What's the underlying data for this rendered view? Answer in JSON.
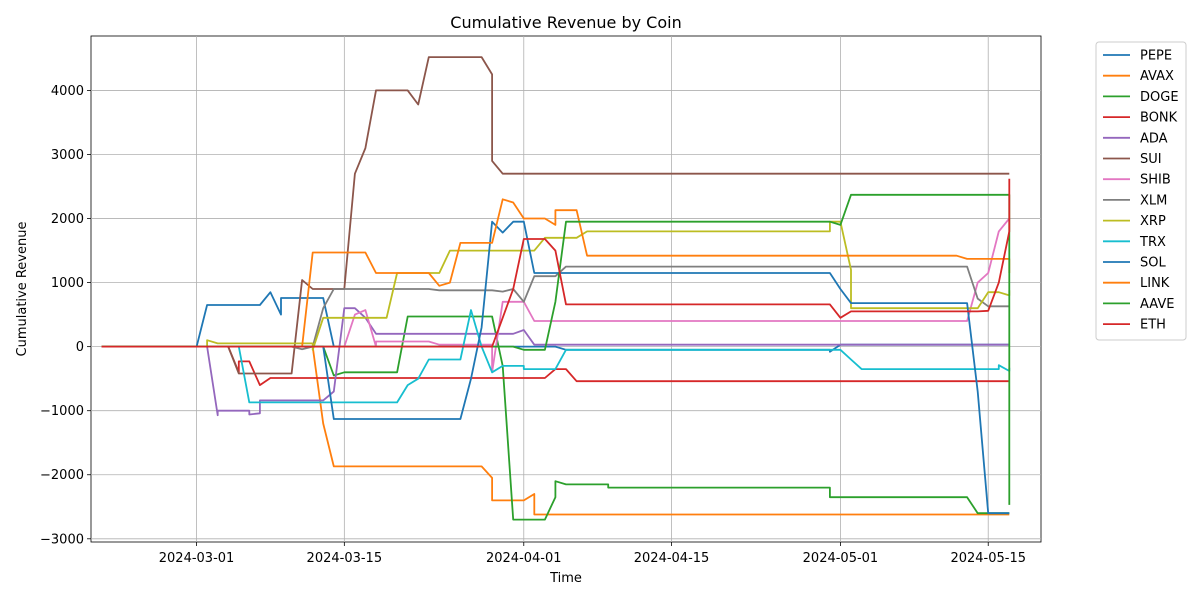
{
  "chart_data": {
    "type": "line",
    "title": "Cumulative Revenue by Coin",
    "xlabel": "Time",
    "ylabel": "Cumulative Revenue",
    "xlim": [
      "2024-02-20",
      "2024-05-20"
    ],
    "ylim": [
      -3050,
      4850
    ],
    "x_ticks": [
      "2024-03-01",
      "2024-03-15",
      "2024-04-01",
      "2024-04-15",
      "2024-05-01",
      "2024-05-15"
    ],
    "y_ticks": [
      -3000,
      -2000,
      -1000,
      0,
      1000,
      2000,
      3000,
      4000
    ],
    "grid": true,
    "legend_position": "outside-right",
    "series": [
      {
        "name": "PEPE",
        "color": "#1f77b4",
        "points": [
          [
            "2024-02-21",
            0
          ],
          [
            "2024-03-01",
            0
          ],
          [
            "2024-03-02",
            650
          ],
          [
            "2024-03-07",
            650
          ],
          [
            "2024-03-08",
            850
          ],
          [
            "2024-03-09",
            500
          ],
          [
            "2024-03-09",
            760
          ],
          [
            "2024-03-13",
            760
          ],
          [
            "2024-03-14",
            0
          ],
          [
            "2024-03-17",
            0
          ],
          [
            "2024-04-04",
            0
          ],
          [
            "2024-04-05",
            -50
          ],
          [
            "2024-04-30",
            -50
          ],
          [
            "2024-04-30",
            -80
          ],
          [
            "2024-05-01",
            30
          ],
          [
            "2024-05-17",
            30
          ]
        ]
      },
      {
        "name": "AVAX",
        "color": "#ff7f0e",
        "points": [
          [
            "2024-02-21",
            0
          ],
          [
            "2024-03-12",
            0
          ],
          [
            "2024-03-13",
            -1200
          ],
          [
            "2024-03-14",
            -1870
          ],
          [
            "2024-03-28",
            -1870
          ],
          [
            "2024-03-29",
            -2050
          ],
          [
            "2024-03-29",
            -2400
          ],
          [
            "2024-04-01",
            -2400
          ],
          [
            "2024-04-02",
            -2300
          ],
          [
            "2024-04-02",
            -2620
          ],
          [
            "2024-05-17",
            -2620
          ]
        ]
      },
      {
        "name": "DOGE",
        "color": "#2ca02c",
        "points": [
          [
            "2024-02-21",
            0
          ],
          [
            "2024-03-13",
            0
          ],
          [
            "2024-03-14",
            -450
          ],
          [
            "2024-03-15",
            -400
          ],
          [
            "2024-03-20",
            -400
          ],
          [
            "2024-03-21",
            470
          ],
          [
            "2024-03-29",
            470
          ],
          [
            "2024-03-30",
            -300
          ],
          [
            "2024-03-31",
            -2700
          ],
          [
            "2024-04-03",
            -2700
          ],
          [
            "2024-04-04",
            -2350
          ],
          [
            "2024-04-04",
            -2100
          ],
          [
            "2024-04-05",
            -2150
          ],
          [
            "2024-04-09",
            -2150
          ],
          [
            "2024-04-09",
            -2200
          ],
          [
            "2024-04-30",
            -2200
          ],
          [
            "2024-04-30",
            -2350
          ],
          [
            "2024-05-13",
            -2350
          ],
          [
            "2024-05-14",
            -2600
          ],
          [
            "2024-05-17",
            -2600
          ]
        ]
      },
      {
        "name": "BONK",
        "color": "#d62728",
        "points": [
          [
            "2024-02-21",
            0
          ],
          [
            "2024-03-04",
            0
          ],
          [
            "2024-03-05",
            -400
          ],
          [
            "2024-03-05",
            -230
          ],
          [
            "2024-03-06",
            -230
          ],
          [
            "2024-03-07",
            -600
          ],
          [
            "2024-03-08",
            -490
          ],
          [
            "2024-04-03",
            -490
          ],
          [
            "2024-04-04",
            -350
          ],
          [
            "2024-04-05",
            -350
          ],
          [
            "2024-04-06",
            -540
          ],
          [
            "2024-04-06",
            -540
          ],
          [
            "2024-05-17",
            -540
          ]
        ]
      },
      {
        "name": "ADA",
        "color": "#9467bd",
        "points": [
          [
            "2024-02-21",
            0
          ],
          [
            "2024-03-02",
            0
          ],
          [
            "2024-03-03",
            -1070
          ],
          [
            "2024-03-03",
            -1000
          ],
          [
            "2024-03-06",
            -1000
          ],
          [
            "2024-03-06",
            -1060
          ],
          [
            "2024-03-07",
            -1040
          ],
          [
            "2024-03-07",
            -840
          ],
          [
            "2024-03-13",
            -840
          ],
          [
            "2024-03-14",
            -700
          ],
          [
            "2024-03-15",
            600
          ],
          [
            "2024-03-16",
            600
          ],
          [
            "2024-03-17",
            450
          ],
          [
            "2024-03-18",
            200
          ],
          [
            "2024-03-31",
            200
          ],
          [
            "2024-04-01",
            260
          ],
          [
            "2024-04-02",
            30
          ],
          [
            "2024-05-17",
            30
          ]
        ]
      },
      {
        "name": "SUI",
        "color": "#8c564b",
        "points": [
          [
            "2024-02-21",
            0
          ],
          [
            "2024-03-04",
            0
          ],
          [
            "2024-03-05",
            -420
          ],
          [
            "2024-03-10",
            -420
          ],
          [
            "2024-03-11",
            1040
          ],
          [
            "2024-03-11",
            1040
          ],
          [
            "2024-03-12",
            900
          ],
          [
            "2024-03-15",
            900
          ],
          [
            "2024-03-16",
            2700
          ],
          [
            "2024-03-17",
            3100
          ],
          [
            "2024-03-18",
            4000
          ],
          [
            "2024-03-21",
            4000
          ],
          [
            "2024-03-22",
            3780
          ],
          [
            "2024-03-23",
            4520
          ],
          [
            "2024-03-28",
            4520
          ],
          [
            "2024-03-29",
            4250
          ],
          [
            "2024-03-29",
            2900
          ],
          [
            "2024-03-30",
            2700
          ],
          [
            "2024-05-17",
            2700
          ]
        ]
      },
      {
        "name": "SHIB",
        "color": "#e377c2",
        "points": [
          [
            "2024-02-21",
            0
          ],
          [
            "2024-03-15",
            0
          ],
          [
            "2024-03-16",
            500
          ],
          [
            "2024-03-17",
            570
          ],
          [
            "2024-03-18",
            0
          ],
          [
            "2024-03-18",
            80
          ],
          [
            "2024-03-23",
            80
          ],
          [
            "2024-03-24",
            30
          ],
          [
            "2024-03-29",
            30
          ],
          [
            "2024-03-29",
            -400
          ],
          [
            "2024-03-30",
            700
          ],
          [
            "2024-04-01",
            700
          ],
          [
            "2024-04-02",
            400
          ],
          [
            "2024-05-13",
            400
          ],
          [
            "2024-05-14",
            1000
          ],
          [
            "2024-05-15",
            1150
          ],
          [
            "2024-05-16",
            1800
          ],
          [
            "2024-05-17",
            2000
          ]
        ]
      },
      {
        "name": "XLM",
        "color": "#7f7f7f",
        "points": [
          [
            "2024-02-21",
            0
          ],
          [
            "2024-03-10",
            0
          ],
          [
            "2024-03-11",
            -40
          ],
          [
            "2024-03-12",
            0
          ],
          [
            "2024-03-13",
            600
          ],
          [
            "2024-03-14",
            900
          ],
          [
            "2024-03-23",
            900
          ],
          [
            "2024-03-24",
            880
          ],
          [
            "2024-03-29",
            880
          ],
          [
            "2024-03-30",
            860
          ],
          [
            "2024-03-31",
            900
          ],
          [
            "2024-04-01",
            700
          ],
          [
            "2024-04-02",
            1100
          ],
          [
            "2024-04-04",
            1100
          ],
          [
            "2024-04-05",
            1250
          ],
          [
            "2024-04-06",
            1250
          ],
          [
            "2024-05-01",
            1250
          ],
          [
            "2024-05-13",
            1250
          ],
          [
            "2024-05-14",
            750
          ],
          [
            "2024-05-15",
            630
          ],
          [
            "2024-05-17",
            630
          ]
        ]
      },
      {
        "name": "XRP",
        "color": "#bcbd22",
        "points": [
          [
            "2024-02-21",
            0
          ],
          [
            "2024-03-02",
            0
          ],
          [
            "2024-03-02",
            100
          ],
          [
            "2024-03-03",
            50
          ],
          [
            "2024-03-12",
            50
          ],
          [
            "2024-03-12",
            -50
          ],
          [
            "2024-03-13",
            450
          ],
          [
            "2024-03-19",
            450
          ],
          [
            "2024-03-20",
            1150
          ],
          [
            "2024-03-24",
            1150
          ],
          [
            "2024-03-25",
            1500
          ],
          [
            "2024-04-02",
            1500
          ],
          [
            "2024-04-03",
            1700
          ],
          [
            "2024-04-06",
            1700
          ],
          [
            "2024-04-07",
            1800
          ],
          [
            "2024-04-30",
            1800
          ],
          [
            "2024-04-30",
            1950
          ],
          [
            "2024-05-01",
            1950
          ],
          [
            "2024-05-02",
            1200
          ],
          [
            "2024-05-02",
            600
          ],
          [
            "2024-05-14",
            600
          ],
          [
            "2024-05-15",
            850
          ],
          [
            "2024-05-16",
            850
          ],
          [
            "2024-05-17",
            800
          ],
          [
            "2024-05-17",
            880
          ]
        ]
      },
      {
        "name": "TRX",
        "color": "#17becf",
        "points": [
          [
            "2024-02-21",
            0
          ],
          [
            "2024-03-05",
            0
          ],
          [
            "2024-03-06",
            -870
          ],
          [
            "2024-03-20",
            -870
          ],
          [
            "2024-03-21",
            -600
          ],
          [
            "2024-03-22",
            -500
          ],
          [
            "2024-03-23",
            -200
          ],
          [
            "2024-03-26",
            -200
          ],
          [
            "2024-03-27",
            570
          ],
          [
            "2024-03-28",
            0
          ],
          [
            "2024-03-29",
            -400
          ],
          [
            "2024-03-30",
            -300
          ],
          [
            "2024-04-01",
            -300
          ],
          [
            "2024-04-01",
            -350
          ],
          [
            "2024-04-04",
            -350
          ],
          [
            "2024-04-05",
            -50
          ],
          [
            "2024-05-01",
            -50
          ],
          [
            "2024-05-02",
            -200
          ],
          [
            "2024-05-03",
            -350
          ],
          [
            "2024-05-16",
            -350
          ],
          [
            "2024-05-16",
            -290
          ],
          [
            "2024-05-17",
            -380
          ],
          [
            "2024-05-17",
            -330
          ]
        ]
      },
      {
        "name": "SOL",
        "color": "#1f77b4",
        "points": [
          [
            "2024-02-21",
            0
          ],
          [
            "2024-03-13",
            0
          ],
          [
            "2024-03-14",
            -1130
          ],
          [
            "2024-03-26",
            -1130
          ],
          [
            "2024-03-27",
            -500
          ],
          [
            "2024-03-28",
            300
          ],
          [
            "2024-03-29",
            1950
          ],
          [
            "2024-03-30",
            1780
          ],
          [
            "2024-03-31",
            1950
          ],
          [
            "2024-04-01",
            1950
          ],
          [
            "2024-04-02",
            1150
          ],
          [
            "2024-04-30",
            1150
          ],
          [
            "2024-05-01",
            900
          ],
          [
            "2024-05-02",
            680
          ],
          [
            "2024-05-13",
            680
          ],
          [
            "2024-05-14",
            -700
          ],
          [
            "2024-05-15",
            -2600
          ],
          [
            "2024-05-17",
            -2600
          ]
        ]
      },
      {
        "name": "LINK",
        "color": "#ff7f0e",
        "points": [
          [
            "2024-02-21",
            0
          ],
          [
            "2024-03-11",
            0
          ],
          [
            "2024-03-12",
            1470
          ],
          [
            "2024-03-17",
            1470
          ],
          [
            "2024-03-18",
            1150
          ],
          [
            "2024-03-23",
            1150
          ],
          [
            "2024-03-24",
            950
          ],
          [
            "2024-03-25",
            1000
          ],
          [
            "2024-03-26",
            1620
          ],
          [
            "2024-03-29",
            1620
          ],
          [
            "2024-03-30",
            2300
          ],
          [
            "2024-03-31",
            2250
          ],
          [
            "2024-04-01",
            2000
          ],
          [
            "2024-04-03",
            2000
          ],
          [
            "2024-04-04",
            1900
          ],
          [
            "2024-04-04",
            2130
          ],
          [
            "2024-04-06",
            2130
          ],
          [
            "2024-04-07",
            1420
          ],
          [
            "2024-05-12",
            1420
          ],
          [
            "2024-05-13",
            1370
          ],
          [
            "2024-05-17",
            1370
          ],
          [
            "2024-05-17",
            1150
          ]
        ]
      },
      {
        "name": "AAVE",
        "color": "#2ca02c",
        "points": [
          [
            "2024-02-21",
            0
          ],
          [
            "2024-03-31",
            0
          ],
          [
            "2024-04-01",
            -50
          ],
          [
            "2024-04-03",
            -50
          ],
          [
            "2024-04-04",
            700
          ],
          [
            "2024-04-05",
            1950
          ],
          [
            "2024-04-30",
            1950
          ],
          [
            "2024-05-01",
            1900
          ],
          [
            "2024-05-02",
            2370
          ],
          [
            "2024-05-17",
            2370
          ],
          [
            "2024-05-17",
            -2470
          ]
        ]
      },
      {
        "name": "ETH",
        "color": "#d62728",
        "points": [
          [
            "2024-02-21",
            0
          ],
          [
            "2024-03-29",
            0
          ],
          [
            "2024-03-30",
            450
          ],
          [
            "2024-03-31",
            900
          ],
          [
            "2024-04-01",
            1680
          ],
          [
            "2024-04-03",
            1680
          ],
          [
            "2024-04-04",
            1500
          ],
          [
            "2024-04-05",
            660
          ],
          [
            "2024-04-30",
            660
          ],
          [
            "2024-05-01",
            450
          ],
          [
            "2024-05-02",
            550
          ],
          [
            "2024-05-14",
            550
          ],
          [
            "2024-05-15",
            560
          ],
          [
            "2024-05-16",
            1000
          ],
          [
            "2024-05-17",
            1800
          ],
          [
            "2024-05-17",
            2620
          ]
        ]
      }
    ]
  }
}
